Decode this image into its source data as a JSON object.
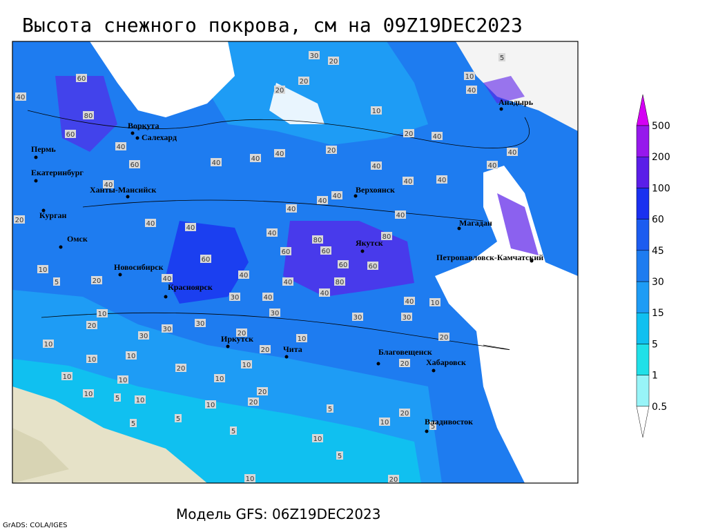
{
  "title": "Высота снежного покрова, см на 09Z19DEC2023",
  "footer": {
    "model": "Модель GFS: 06Z19DEC2023",
    "credit": "GrADS: COLA/IGES"
  },
  "legend": {
    "levels": [
      0.5,
      1,
      5,
      15,
      30,
      45,
      60,
      100,
      200,
      500
    ],
    "colors": [
      "#ffffff",
      "#98f4f8",
      "#20e0e8",
      "#10c0f0",
      "#1e9cf5",
      "#1e7cf0",
      "#1c5cf0",
      "#1a30f0",
      "#5a1ee8",
      "#9618ec",
      "#d400f4"
    ]
  },
  "cities": [
    "Воркута",
    "Салехард",
    "Пермь",
    "Екатеринбург",
    "Ханты-Мансийск",
    "Курган",
    "Омск",
    "Новосибирск",
    "Красноярск",
    "Иркутск",
    "Чита",
    "Верхоянск",
    "Якутск",
    "Магадан",
    "Анадырь",
    "Петропавловск-Камчатский",
    "Благовещенск",
    "Хабаровск",
    "Владивосток"
  ],
  "contour_labels": [
    "30",
    "20",
    "20",
    "20",
    "10",
    "10",
    "40",
    "60",
    "40",
    "80",
    "60",
    "40",
    "60",
    "40",
    "40",
    "40",
    "40",
    "20",
    "40",
    "40",
    "20",
    "40",
    "40",
    "40",
    "40",
    "40",
    "40",
    "40",
    "40",
    "20",
    "40",
    "40",
    "40",
    "80",
    "80",
    "60",
    "60",
    "60",
    "60",
    "60",
    "10",
    "5",
    "20",
    "40",
    "80",
    "40",
    "40",
    "40",
    "40",
    "30",
    "40",
    "10",
    "10",
    "20",
    "30",
    "30",
    "30",
    "30",
    "30",
    "30",
    "20",
    "10",
    "20",
    "10",
    "10",
    "10",
    "20",
    "10",
    "20",
    "20",
    "10",
    "10",
    "10",
    "20",
    "20",
    "10",
    "5",
    "10",
    "10",
    "5",
    "20",
    "10",
    "5",
    "5",
    "5",
    "10",
    "5",
    "10",
    "20",
    "5",
    "5"
  ]
}
